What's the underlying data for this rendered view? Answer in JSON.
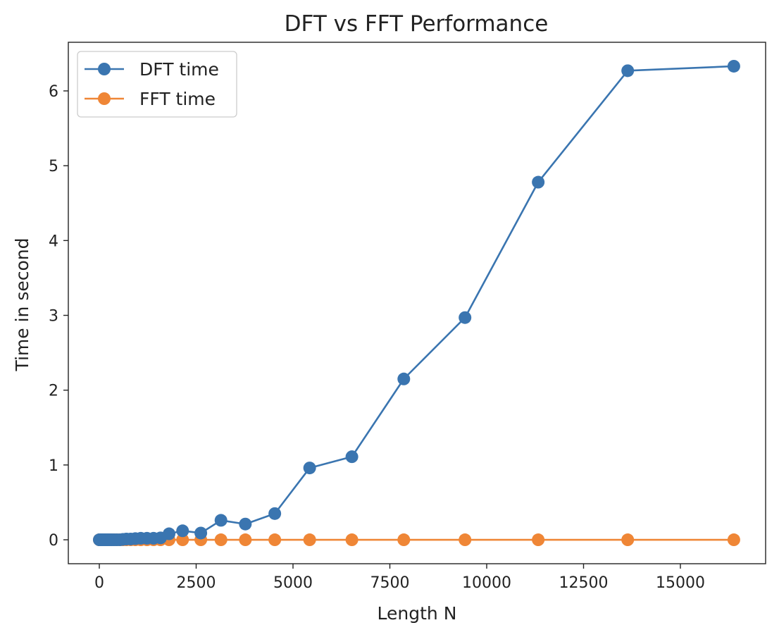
{
  "chart_data": {
    "type": "line",
    "title": "DFT vs FFT Performance",
    "xlabel": "Length N",
    "ylabel": "Time in second",
    "xlim": [
      -800,
      17200
    ],
    "ylim": [
      -0.32,
      6.65
    ],
    "xticks": [
      0,
      2500,
      5000,
      7500,
      10000,
      12500,
      15000
    ],
    "yticks": [
      0,
      1,
      2,
      3,
      4,
      5,
      6
    ],
    "grid": false,
    "legend_position": "top-left",
    "series": [
      {
        "name": "DFT time",
        "color": "#3a75b0",
        "marker": "circle",
        "x": [
          0,
          20,
          50,
          80,
          110,
          140,
          180,
          220,
          270,
          320,
          380,
          450,
          530,
          610,
          700,
          810,
          930,
          1070,
          1230,
          1400,
          1580,
          1800,
          2150,
          2620,
          3140,
          3770,
          4530,
          5430,
          6520,
          7860,
          9440,
          11330,
          13640,
          16380
        ],
        "y": [
          0,
          0,
          0,
          0,
          0,
          0,
          0,
          0,
          0,
          0,
          0,
          0,
          0,
          0.005,
          0.01,
          0.01,
          0.015,
          0.02,
          0.02,
          0.02,
          0.025,
          0.08,
          0.12,
          0.09,
          0.26,
          0.21,
          0.35,
          0.96,
          1.11,
          2.15,
          2.97,
          4.78,
          6.27,
          6.33
        ]
      },
      {
        "name": "FFT time",
        "color": "#ef8636",
        "marker": "circle",
        "x": [
          0,
          20,
          50,
          80,
          110,
          140,
          180,
          220,
          270,
          320,
          380,
          450,
          530,
          610,
          700,
          810,
          930,
          1070,
          1230,
          1400,
          1580,
          1800,
          2150,
          2620,
          3140,
          3770,
          4530,
          5430,
          6520,
          7860,
          9440,
          11330,
          13640,
          16380
        ],
        "y": [
          0,
          0,
          0,
          0,
          0,
          0,
          0,
          0,
          0,
          0,
          0,
          0,
          0,
          0,
          0,
          0,
          0,
          0,
          0,
          0,
          0,
          0,
          0,
          0,
          0,
          0,
          0,
          0,
          0,
          0,
          0,
          0,
          0,
          0
        ]
      }
    ]
  }
}
